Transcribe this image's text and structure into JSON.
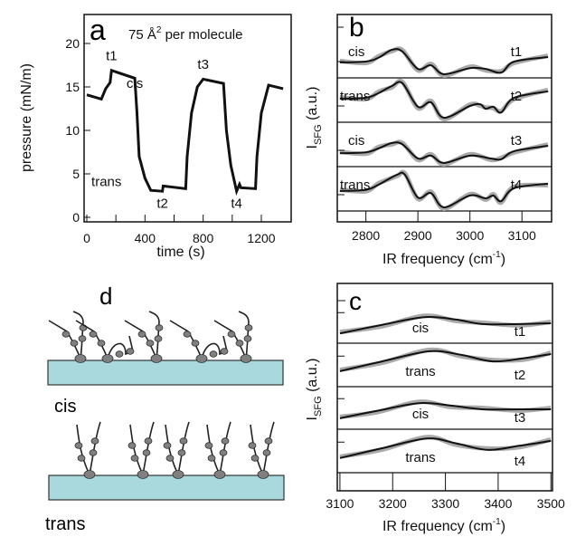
{
  "chart_data": [
    {
      "panel": "a",
      "type": "line",
      "annotation": "75 Å",
      "annotation_sup": "2",
      "annotation_tail": " per molecule",
      "xlabel": "time (s)",
      "ylabel": "pressure (mN/m)",
      "xlim": [
        -40,
        1420
      ],
      "ylim": [
        -0.5,
        23.5
      ],
      "xticks": [
        "0",
        "400",
        "800",
        "1200"
      ],
      "xtick_values": [
        0,
        400,
        800,
        1200
      ],
      "yticks": [
        "0",
        "5",
        "10",
        "15",
        "20"
      ],
      "ytick_values": [
        0,
        5,
        10,
        15,
        20
      ],
      "labels": [
        {
          "text": "t1",
          "x": 170,
          "y": 18.5
        },
        {
          "text": "cis",
          "x": 330,
          "y": 15.3
        },
        {
          "text": "t3",
          "x": 800,
          "y": 17.5
        },
        {
          "text": "trans",
          "x": 135,
          "y": 4
        },
        {
          "text": "t2",
          "x": 520,
          "y": 1.5
        },
        {
          "text": "t4",
          "x": 1030,
          "y": 1.5
        }
      ],
      "x": [
        0,
        100,
        130,
        160,
        170,
        330,
        345,
        360,
        400,
        440,
        520,
        525,
        680,
        690,
        720,
        760,
        800,
        940,
        960,
        990,
        1030,
        1050,
        1060,
        1160,
        1170,
        1200,
        1250,
        1350
      ],
      "y": [
        14.1,
        13.6,
        14.8,
        15.5,
        16.9,
        16.0,
        12,
        7,
        4.5,
        3.1,
        3.0,
        3.6,
        3.3,
        7,
        12,
        15,
        15.9,
        15.4,
        10,
        6,
        3.0,
        3.8,
        3.4,
        3.3,
        7,
        12,
        15.2,
        14.8
      ]
    },
    {
      "panel": "b",
      "type": "line",
      "xlabel": "IR frequency (cm",
      "xlabel_sup": "-1",
      "xlabel_tail": ")",
      "ylabel": "I",
      "ylabel_sub": "SFG",
      "ylabel_tail": " (a.u.)",
      "xlim": [
        2745,
        3157
      ],
      "xticks": [
        "2800",
        "2900",
        "3000",
        "3100"
      ],
      "xtick_values": [
        2800,
        2900,
        3000,
        3100
      ],
      "series": [
        {
          "name": "t1",
          "state": "cis",
          "x": [
            2750,
            2800,
            2825,
            2850,
            2870,
            2900,
            2925,
            2950,
            3000,
            3030,
            3060,
            3085,
            3150
          ],
          "y": [
            0.38,
            0.4,
            0.5,
            0.69,
            0.65,
            0.22,
            0.31,
            0.09,
            0.24,
            0.22,
            0.13,
            0.4,
            0.51
          ]
        },
        {
          "name": "t2",
          "state": "trans",
          "x": [
            2750,
            2800,
            2825,
            2850,
            2870,
            2900,
            2925,
            2950,
            3000,
            3020,
            3030,
            3045,
            3060,
            3085,
            3150
          ],
          "y": [
            0.58,
            0.6,
            0.72,
            0.89,
            0.96,
            0.38,
            0.49,
            0.11,
            0.4,
            0.44,
            0.33,
            0.38,
            0.24,
            0.6,
            0.76
          ]
        },
        {
          "name": "t3",
          "state": "cis",
          "x": [
            2750,
            2800,
            2825,
            2850,
            2870,
            2900,
            2925,
            2950,
            3000,
            3040,
            3060,
            3085,
            3150
          ],
          "y": [
            0.33,
            0.35,
            0.45,
            0.58,
            0.55,
            0.2,
            0.27,
            0.09,
            0.27,
            0.2,
            0.18,
            0.38,
            0.51
          ]
        },
        {
          "name": "t4",
          "state": "trans",
          "x": [
            2750,
            2800,
            2825,
            2860,
            2875,
            2900,
            2925,
            2950,
            3000,
            3030,
            3045,
            3060,
            3085,
            3150
          ],
          "y": [
            0.49,
            0.52,
            0.65,
            0.89,
            0.89,
            0.33,
            0.44,
            0.09,
            0.38,
            0.31,
            0.38,
            0.24,
            0.56,
            0.67
          ]
        }
      ]
    },
    {
      "panel": "c",
      "type": "line",
      "xlabel": "IR frequency (cm",
      "xlabel_sup": "-1",
      "xlabel_tail": ")",
      "ylabel": "I",
      "ylabel_sub": "SFG",
      "ylabel_tail": " (a.u.)",
      "xlim": [
        3095,
        3503
      ],
      "xticks": [
        "3100",
        "3200",
        "3300",
        "3400",
        "3500"
      ],
      "xtick_values": [
        3100,
        3200,
        3300,
        3400,
        3500
      ],
      "series": [
        {
          "name": "t1",
          "state": "cis",
          "x": [
            3100,
            3180,
            3260,
            3320,
            3370,
            3440,
            3500
          ],
          "y": [
            0.24,
            0.45,
            0.64,
            0.58,
            0.47,
            0.47,
            0.49
          ]
        },
        {
          "name": "t2",
          "state": "trans",
          "x": [
            3100,
            3180,
            3270,
            3330,
            3390,
            3450,
            3500
          ],
          "y": [
            0.38,
            0.62,
            0.87,
            0.78,
            0.62,
            0.7,
            0.8
          ]
        },
        {
          "name": "t3",
          "state": "cis",
          "x": [
            3100,
            3170,
            3250,
            3310,
            3370,
            3440,
            3500
          ],
          "y": [
            0.27,
            0.45,
            0.64,
            0.58,
            0.49,
            0.49,
            0.49
          ]
        },
        {
          "name": "t4",
          "state": "trans",
          "x": [
            3100,
            3180,
            3265,
            3320,
            3380,
            3440,
            3500
          ],
          "y": [
            0.36,
            0.6,
            0.84,
            0.72,
            0.56,
            0.66,
            0.78
          ]
        }
      ]
    }
  ],
  "panel_labels": {
    "a": "a",
    "b": "b",
    "c": "c",
    "d": "d"
  },
  "schematic": {
    "cis_label": "cis",
    "trans_label": "trans",
    "substrate_color": "#a9d9dc",
    "head_color": "#808080"
  }
}
